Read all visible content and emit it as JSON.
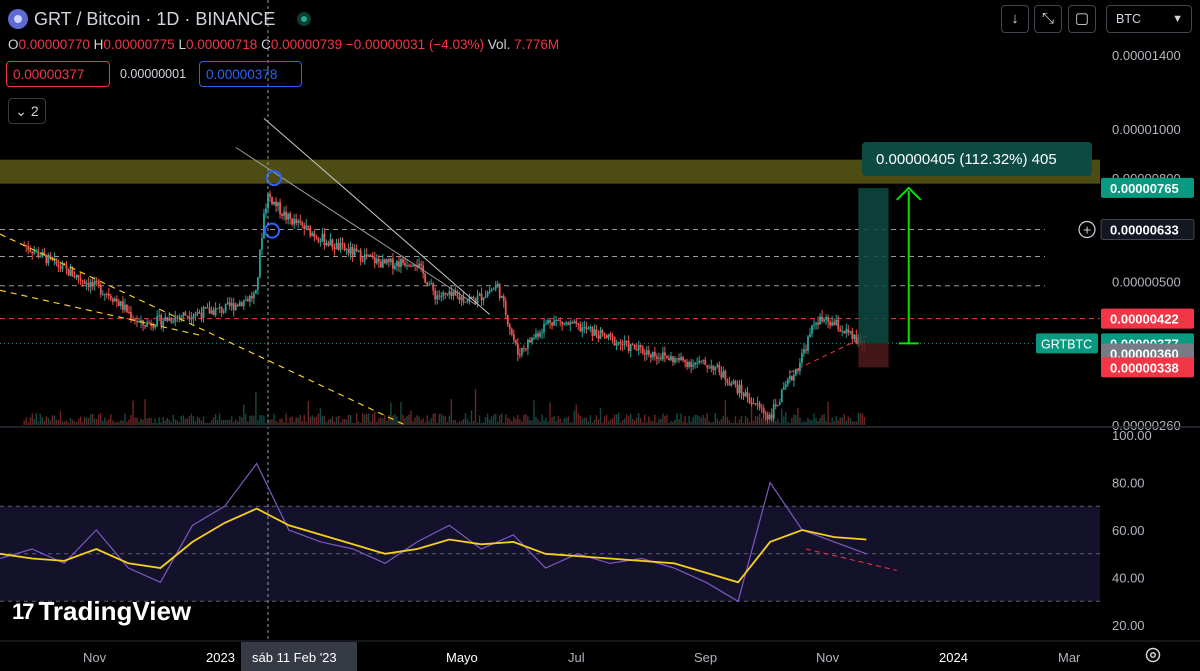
{
  "header": {
    "symbol": "GRT / Bitcoin · 1D · BINANCE",
    "ohlc": [
      {
        "k": "O",
        "v": "0.00000770"
      },
      {
        "k": "H",
        "v": "0.00000775"
      },
      {
        "k": "L",
        "v": "0.00000718"
      },
      {
        "k": "C",
        "v": "0.00000739"
      }
    ],
    "change": "−0.00000031 (−4.03%)",
    "volume_label": "Vol.",
    "volume": "7.776M",
    "sell_price": "0.00000377",
    "spread": "0.00000001",
    "buy_price": "0.00000378",
    "indicators_count": "2"
  },
  "toolbar": {
    "currency": "BTC"
  },
  "colors": {
    "up": "#26a69a",
    "down": "#ef5350",
    "rsi": "#7e57c2",
    "rsi_ma": "#f5d01e",
    "zone": "#5a5a16",
    "bg": "#000000",
    "axis_text": "#b2b5be"
  },
  "chart_data": [
    {
      "type": "line",
      "title": "GRT / Bitcoin · 1D · BINANCE",
      "note_type": "candlestick (daily), shown as approximate close path",
      "x": [
        "2022-10-13",
        "2022-11-01",
        "2022-11-25",
        "2022-12-10",
        "2023-01-01",
        "2023-01-20",
        "2023-02-05",
        "2023-02-09",
        "2023-02-11",
        "2023-02-20",
        "2023-03-15",
        "2023-04-10",
        "2023-04-25",
        "2023-05-05",
        "2023-05-25",
        "2023-06-05",
        "2023-06-15",
        "2023-07-01",
        "2023-07-20",
        "2023-08-10",
        "2023-09-01",
        "2023-09-20",
        "2023-10-05",
        "2023-10-18",
        "2023-11-01",
        "2023-11-10",
        "2023-11-20",
        "2023-12-04"
      ],
      "series": [
        {
          "values": [
            5.9e-06,
            5.3e-06,
            4.7e-06,
            4.1e-06,
            4.3e-06,
            4.4e-06,
            4.7e-06,
            6.8e-06,
            7.4e-06,
            6.7e-06,
            5.9e-06,
            5.4e-06,
            5.5e-06,
            4.7e-06,
            4.6e-06,
            4.9e-06,
            3.6e-06,
            4.2e-06,
            4e-06,
            3.7e-06,
            3.5e-06,
            3.4e-06,
            3e-06,
            2.7e-06,
            3.4e-06,
            4.2e-06,
            4.1e-06,
            3.7e-06
          ]
        }
      ],
      "ylim": [
        2.6e-06,
        1.5e-06
      ],
      "price_ticks": [
        "0.00001400",
        "0.00001000",
        "0.00000800",
        "0.00000500",
        "0.00000260"
      ],
      "badges": [
        {
          "label": "0.00000765",
          "color": "#089981",
          "y": 7.65e-06
        },
        {
          "label": "0.00000633",
          "color": "#131722",
          "y": 6.33e-06
        },
        {
          "label": "0.00000422",
          "color": "#f23645",
          "y": 4.22e-06
        },
        {
          "label": "0.00000377",
          "color": "#089981",
          "y": 3.77e-06,
          "tag": "GRTBTC"
        },
        {
          "label": "0.00000360",
          "color": "#787b86",
          "y": 3.6e-06
        },
        {
          "label": "0.00000338",
          "color": "#f23645",
          "y": 3.38e-06
        }
      ],
      "resistance_zone": [
        7.8e-06,
        8.7e-06
      ],
      "measure_label": "0.00000405 (112.32%) 405",
      "time_axis": [
        "Nov",
        "2023",
        "sáb 11 Feb '23",
        "Mayo",
        "Jul",
        "Sep",
        "Nov",
        "2024",
        "Mar"
      ]
    },
    {
      "type": "line",
      "note_type": "RSI oscillator with moving average",
      "series": [
        {
          "values": [
            48,
            52,
            46,
            60,
            44,
            38,
            62,
            70,
            88,
            60,
            55,
            52,
            46,
            55,
            62,
            52,
            58,
            44,
            50,
            46,
            48,
            44,
            38,
            30,
            80,
            60,
            55,
            50
          ]
        },
        {
          "values": [
            50,
            48,
            47,
            52,
            46,
            44,
            55,
            63,
            69,
            62,
            58,
            54,
            50,
            52,
            56,
            54,
            55,
            50,
            49,
            48,
            47,
            46,
            42,
            38,
            55,
            60,
            57,
            56
          ]
        }
      ],
      "ylim": [
        20,
        100
      ],
      "rsi_ticks": [
        "100.00",
        "80.00",
        "60.00",
        "40.00",
        "20.00"
      ]
    }
  ],
  "watermark": "TradingView"
}
